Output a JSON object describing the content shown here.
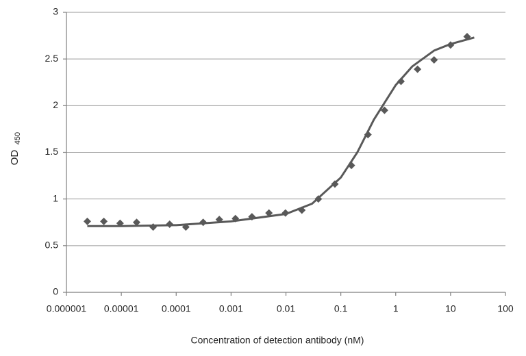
{
  "chart_data": {
    "type": "scatter",
    "x_label": "Concentration of detection antibody (nM)",
    "y_label": "OD",
    "y_label_subscript": "450",
    "xscale": "log",
    "xlim": [
      1e-06,
      100
    ],
    "xticks": [
      1e-06,
      1e-05,
      0.0001,
      0.001,
      0.01,
      0.1,
      1,
      10,
      100
    ],
    "ylim": [
      0,
      3
    ],
    "yticks": [
      0,
      0.5,
      1,
      1.5,
      2,
      2.5,
      3
    ],
    "grid": true,
    "series": [
      {
        "type": "scatter",
        "color": "#595959",
        "x": [
          2.4e-06,
          4.8e-06,
          9.5e-06,
          1.9e-05,
          3.8e-05,
          7.6e-05,
          0.00015,
          0.00031,
          0.00061,
          0.0012,
          0.0024,
          0.0049,
          0.0098,
          0.0195,
          0.039,
          0.078,
          0.156,
          0.3125,
          0.625,
          1.25,
          2.5,
          5,
          10,
          20
        ],
        "values": [
          0.76,
          0.76,
          0.74,
          0.75,
          0.7,
          0.73,
          0.7,
          0.75,
          0.78,
          0.79,
          0.81,
          0.85,
          0.85,
          0.88,
          1.0,
          1.16,
          1.36,
          1.69,
          1.95,
          2.26,
          2.39,
          2.49,
          2.65,
          2.74
        ]
      },
      {
        "type": "line",
        "color": "#595959",
        "x": [
          2.4e-06,
          1e-05,
          0.0001,
          0.001,
          0.01,
          0.03,
          0.1,
          0.2,
          0.4,
          1,
          2,
          5,
          10,
          27
        ],
        "values": [
          0.71,
          0.71,
          0.72,
          0.76,
          0.84,
          0.95,
          1.23,
          1.5,
          1.85,
          2.22,
          2.42,
          2.59,
          2.66,
          2.73
        ]
      }
    ]
  }
}
